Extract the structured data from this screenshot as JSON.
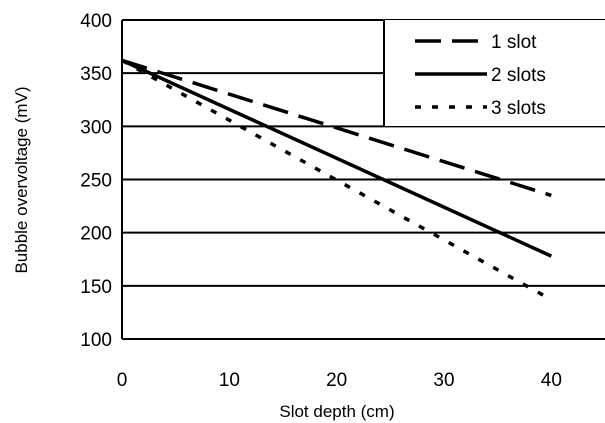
{
  "chart_data": {
    "type": "line",
    "title": "",
    "xlabel": "Slot depth (cm)",
    "ylabel": "Bubble overvoltage (mV)",
    "xlim": [
      0,
      45
    ],
    "ylim": [
      100,
      400
    ],
    "xticks": [
      "0",
      "10",
      "20",
      "30",
      "40"
    ],
    "yticks": [
      "100",
      "150",
      "200",
      "250",
      "300",
      "350",
      "400"
    ],
    "grid": "horizontal",
    "legend_position": "top-right",
    "series": [
      {
        "name": "1 slot",
        "style": "dashed",
        "x": [
          0,
          40
        ],
        "y": [
          362,
          235
        ]
      },
      {
        "name": "2 slots",
        "style": "solid",
        "x": [
          0,
          40
        ],
        "y": [
          362,
          178
        ]
      },
      {
        "name": "3 slots",
        "style": "dotted",
        "x": [
          0,
          40
        ],
        "y": [
          362,
          137
        ]
      }
    ]
  }
}
